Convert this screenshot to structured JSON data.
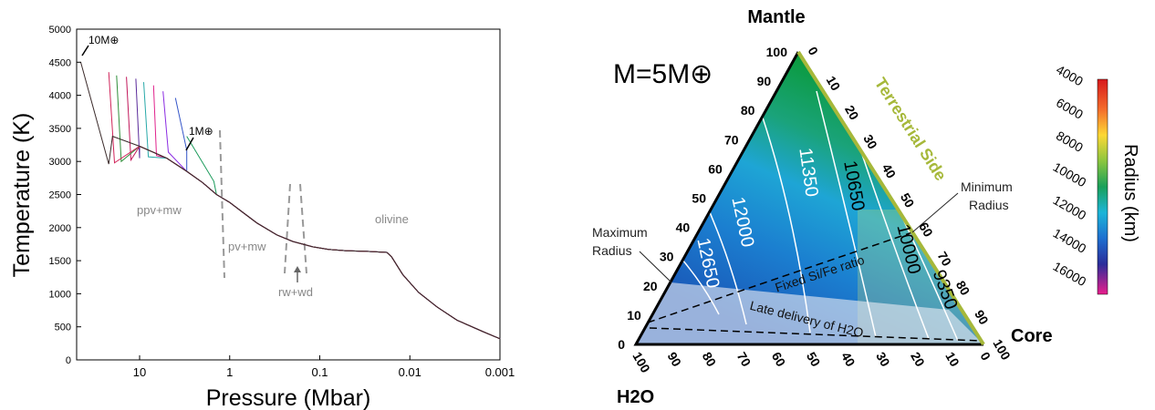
{
  "chart_data": [
    {
      "type": "line",
      "xlabel": "Pressure (Mbar)",
      "ylabel": "Temperature (K)",
      "xscale": "log",
      "x_reversed": true,
      "xlim": [
        50,
        0.001
      ],
      "ylim": [
        0,
        5000
      ],
      "xticks": [
        "10",
        "1",
        "0.1",
        "0.01",
        "0.001"
      ],
      "xtick_values": [
        10,
        1,
        0.1,
        0.01,
        0.001
      ],
      "yticks": [
        "0",
        "500",
        "1000",
        "1500",
        "2000",
        "2500",
        "3000",
        "3500",
        "4000",
        "4500",
        "5000"
      ],
      "ytick_values": [
        0,
        500,
        1000,
        1500,
        2000,
        2500,
        3000,
        3500,
        4000,
        4500,
        5000
      ],
      "annotations": [
        {
          "text": "10M⊕",
          "x": 40,
          "y": 4750
        },
        {
          "text": "1M⊕",
          "x": 3.0,
          "y": 3650
        },
        {
          "text": "ppv+mw",
          "x": 6.0,
          "y": 2050
        },
        {
          "text": "pv+mw",
          "x": 0.6,
          "y": 1550
        },
        {
          "text": "olivine",
          "x": 0.015,
          "y": 2050
        },
        {
          "text": "rw+wd",
          "x": 0.12,
          "y": 1000
        }
      ],
      "series_colors": [
        "#1a9a5a",
        "#3455c8",
        "#8a2be2",
        "#e0228c",
        "#27a8a8",
        "#5a2a9a",
        "#c2185b",
        "#2f8f3a",
        "#d0245a",
        "#3a2a2a"
      ],
      "series": [
        {
          "tops": [
            [
              3.0,
              3380
            ],
            [
              1.5,
              2700
            ]
          ],
          "end_p": 1.5
        },
        {
          "tops": [
            [
              4.0,
              3960
            ],
            [
              3.0,
              3170
            ]
          ],
          "end_p": 3.0
        },
        {
          "tops": [
            [
              5.5,
              4060
            ],
            [
              4.8,
              3140
            ]
          ],
          "end_p": 4.8
        },
        {
          "tops": [
            [
              7.0,
              4150
            ],
            [
              6.5,
              3090
            ]
          ],
          "end_p": 6.5
        },
        {
          "tops": [
            [
              9.0,
              4200
            ],
            [
              8.0,
              3070
            ]
          ],
          "end_p": 8.0
        },
        {
          "tops": [
            [
              11.0,
              4250
            ],
            [
              10.0,
              3050
            ]
          ],
          "end_p": 10.0
        },
        {
          "tops": [
            [
              14.0,
              4280
            ],
            [
              12.5,
              3020
            ]
          ],
          "end_p": 12.5
        },
        {
          "tops": [
            [
              18.0,
              4300
            ],
            [
              16.0,
              3000
            ]
          ],
          "end_p": 16.0
        },
        {
          "tops": [
            [
              22.0,
              4350
            ],
            [
              19.0,
              2980
            ]
          ],
          "end_p": 19.0
        },
        {
          "tops": [
            [
              45.0,
              4500
            ],
            [
              22.0,
              2960
            ]
          ],
          "end_p": 22.0
        }
      ],
      "common_curve": [
        [
          30,
          3460
        ],
        [
          20,
          3380
        ],
        [
          10,
          3230
        ],
        [
          5,
          3050
        ],
        [
          3,
          2850
        ],
        [
          2,
          2680
        ],
        [
          1.4,
          2500
        ],
        [
          1,
          2380
        ],
        [
          0.7,
          2220
        ],
        [
          0.5,
          2070
        ],
        [
          0.3,
          1890
        ],
        [
          0.2,
          1790
        ],
        [
          0.12,
          1710
        ],
        [
          0.08,
          1670
        ],
        [
          0.05,
          1650
        ],
        [
          0.03,
          1640
        ],
        [
          0.018,
          1625
        ],
        [
          0.016,
          1560
        ],
        [
          0.012,
          1290
        ],
        [
          0.008,
          1020
        ],
        [
          0.005,
          800
        ],
        [
          0.003,
          600
        ],
        [
          0.0015,
          420
        ],
        [
          0.001,
          320
        ]
      ]
    },
    {
      "type": "ternary",
      "title": "M=5M⊕",
      "corners": {
        "top": "Mantle",
        "right": "Core",
        "left": "H2O"
      },
      "side_label": "Terrestrial Side",
      "colorbar_label": "Radius (km)",
      "colorbar_ticks": [
        "4000",
        "6000",
        "8000",
        "10000",
        "12000",
        "14000",
        "16000"
      ],
      "colorbar_range": [
        4000,
        17000
      ],
      "left_ticks": [
        "0",
        "10",
        "20",
        "30",
        "40",
        "50",
        "60",
        "70",
        "80",
        "90",
        "100"
      ],
      "right_ticks": [
        "0",
        "10",
        "20",
        "30",
        "40",
        "50",
        "60",
        "70",
        "80",
        "90",
        "100"
      ],
      "bottom_ticks": [
        "100",
        "90",
        "80",
        "70",
        "60",
        "50",
        "40",
        "30",
        "20",
        "10",
        "0"
      ],
      "contour_labels": [
        "12650",
        "12000",
        "11350",
        "10650",
        "10000",
        "9350"
      ],
      "annotations": [
        "Maximum Radius",
        "Minimum Radius",
        "Fixed Si/Fe ratio",
        "Late delivery of H2O"
      ],
      "colors": {
        "side": "#a6b83a",
        "contour": "#ffffff"
      }
    }
  ]
}
